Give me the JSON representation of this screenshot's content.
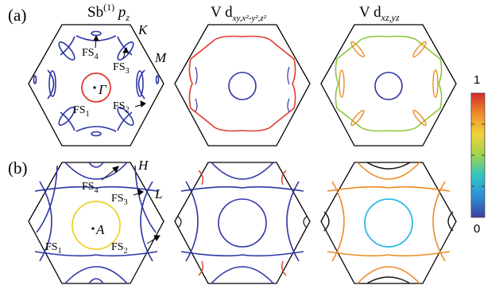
{
  "figure": {
    "panel_labels": {
      "a": "(a)",
      "b": "(b)"
    },
    "column_titles": [
      {
        "main": "Sb",
        "sup": "(1)",
        "tail": " p",
        "sub": "z"
      },
      {
        "main": "V d",
        "sub": "xy,x²-y²,z²"
      },
      {
        "main": "V d",
        "sub": "xz,yz"
      }
    ],
    "points": {
      "a": {
        "Gamma": "Γ",
        "K": "K",
        "M": "M"
      },
      "b": {
        "A": "A",
        "H": "H",
        "L": "L"
      }
    },
    "fs_labels": {
      "a": [
        {
          "base": "FS",
          "sub": "1"
        },
        {
          "base": "FS",
          "sub": "2"
        },
        {
          "base": "FS",
          "sub": "3"
        },
        {
          "base": "FS",
          "sub": "4"
        }
      ],
      "b": [
        {
          "base": "FS",
          "sub": "1"
        },
        {
          "base": "FS",
          "sub": "2"
        },
        {
          "base": "FS",
          "sub": "3"
        },
        {
          "base": "FS",
          "sub": "4"
        }
      ]
    },
    "colorbar": {
      "max_label": "1",
      "min_label": "0",
      "colors": [
        "#3b3ea6",
        "#2f8fd8",
        "#32c6c2",
        "#9bd44a",
        "#f3d23a",
        "#f08a2a",
        "#d52a2a"
      ]
    },
    "colors": {
      "low": "#2d35a5",
      "orange": "#ee8a22",
      "red": "#e03a2a",
      "yellow": "#f2cf2a",
      "cyan": "#2fb8e6",
      "green": "#8cc83a",
      "black": "#111111"
    }
  }
}
